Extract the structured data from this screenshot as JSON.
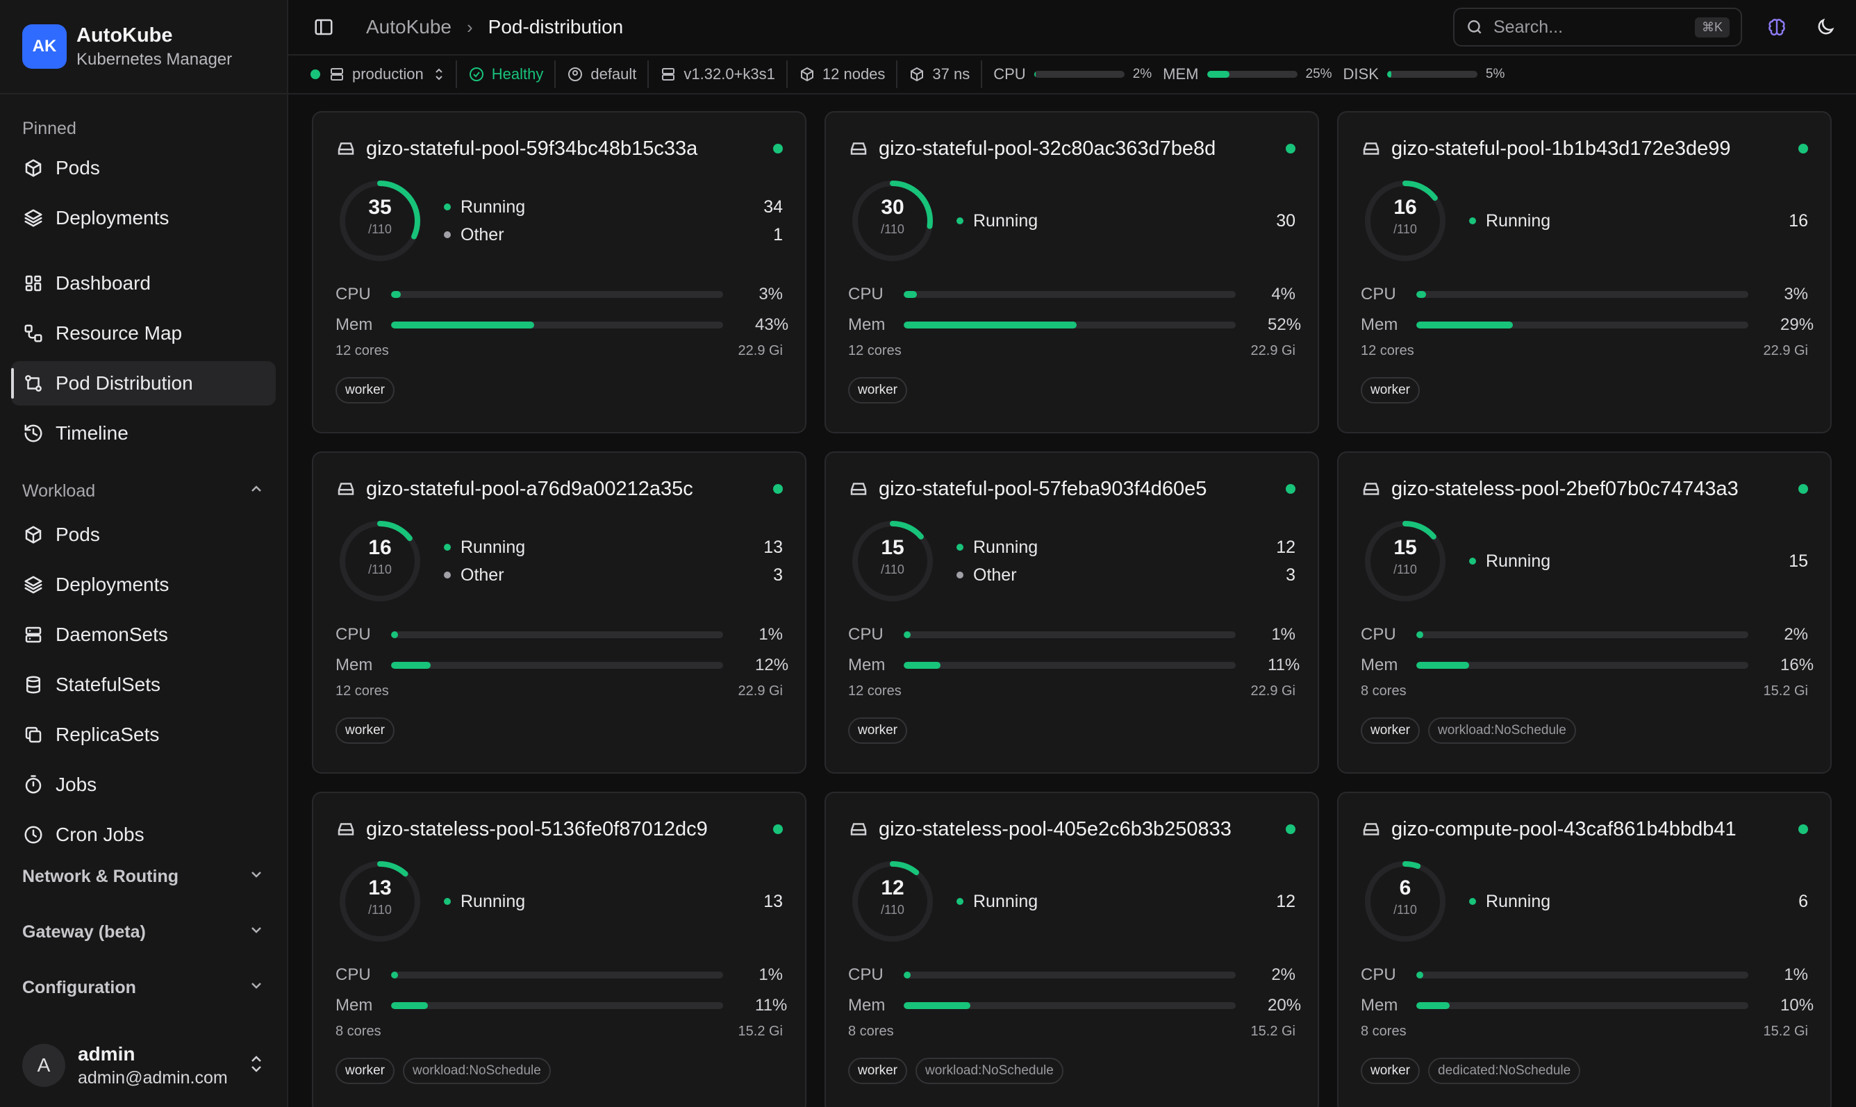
{
  "brand": {
    "logo": "AK",
    "name": "AutoKube",
    "subtitle": "Kubernetes Manager"
  },
  "sidebar": {
    "pinned_label": "Pinned",
    "pinned": [
      {
        "label": "Pods",
        "icon": "cube-icon"
      },
      {
        "label": "Deployments",
        "icon": "layers-icon"
      }
    ],
    "main": [
      {
        "label": "Dashboard",
        "icon": "dashboard-icon"
      },
      {
        "label": "Resource Map",
        "icon": "map-icon"
      },
      {
        "label": "Pod Distribution",
        "icon": "distribution-icon",
        "active": true
      },
      {
        "label": "Timeline",
        "icon": "history-icon"
      }
    ],
    "workload_label": "Workload",
    "workload": [
      {
        "label": "Pods",
        "icon": "cube-icon"
      },
      {
        "label": "Deployments",
        "icon": "layers-icon"
      },
      {
        "label": "DaemonSets",
        "icon": "server-icon"
      },
      {
        "label": "StatefulSets",
        "icon": "database-icon"
      },
      {
        "label": "ReplicaSets",
        "icon": "copy-icon"
      },
      {
        "label": "Jobs",
        "icon": "timer-icon"
      },
      {
        "label": "Cron Jobs",
        "icon": "clock-icon"
      }
    ],
    "sections": [
      "Network & Routing",
      "Gateway (beta)",
      "Configuration"
    ],
    "user": {
      "initial": "A",
      "name": "admin",
      "email": "admin@admin.com"
    }
  },
  "header": {
    "breadcrumb": [
      "AutoKube",
      "Pod-distribution"
    ],
    "search_placeholder": "Search...",
    "search_shortcut": "⌘K"
  },
  "statusbar": {
    "cluster": "production",
    "health": "Healthy",
    "namespace": "default",
    "version": "v1.32.0+k3s1",
    "nodes": "12 nodes",
    "namespaces": "37 ns",
    "cpu_label": "CPU",
    "cpu_pct": "2%",
    "cpu_val": 2,
    "mem_label": "MEM",
    "mem_pct": "25%",
    "mem_val": 25,
    "disk_label": "DISK",
    "disk_pct": "5%",
    "disk_val": 5
  },
  "colors": {
    "accent": "#18c37a",
    "brand": "#2f6bff",
    "other": "#a0a0a6"
  },
  "labels": {
    "running": "Running",
    "other": "Other",
    "cpu": "CPU",
    "mem": "Mem",
    "max": "/110"
  },
  "nodes": [
    {
      "name": "gizo-stateful-pool-59f34bc48b15c33a",
      "total": 35,
      "running": 34,
      "other": 1,
      "cpu_pct": "3%",
      "cpu": 3,
      "mem_pct": "43%",
      "mem": 43,
      "cores": "12 cores",
      "memory": "22.9 Gi",
      "tags": [
        "worker"
      ]
    },
    {
      "name": "gizo-stateful-pool-32c80ac363d7be8d",
      "total": 30,
      "running": 30,
      "other": 0,
      "cpu_pct": "4%",
      "cpu": 4,
      "mem_pct": "52%",
      "mem": 52,
      "cores": "12 cores",
      "memory": "22.9 Gi",
      "tags": [
        "worker"
      ]
    },
    {
      "name": "gizo-stateful-pool-1b1b43d172e3de99",
      "total": 16,
      "running": 16,
      "other": 0,
      "cpu_pct": "3%",
      "cpu": 3,
      "mem_pct": "29%",
      "mem": 29,
      "cores": "12 cores",
      "memory": "22.9 Gi",
      "tags": [
        "worker"
      ]
    },
    {
      "name": "gizo-stateful-pool-a76d9a00212a35c",
      "total": 16,
      "running": 13,
      "other": 3,
      "cpu_pct": "1%",
      "cpu": 1,
      "mem_pct": "12%",
      "mem": 12,
      "cores": "12 cores",
      "memory": "22.9 Gi",
      "tags": [
        "worker"
      ]
    },
    {
      "name": "gizo-stateful-pool-57feba903f4d60e5",
      "total": 15,
      "running": 12,
      "other": 3,
      "cpu_pct": "1%",
      "cpu": 1,
      "mem_pct": "11%",
      "mem": 11,
      "cores": "12 cores",
      "memory": "22.9 Gi",
      "tags": [
        "worker"
      ]
    },
    {
      "name": "gizo-stateless-pool-2bef07b0c74743a3",
      "total": 15,
      "running": 15,
      "other": 0,
      "cpu_pct": "2%",
      "cpu": 2,
      "mem_pct": "16%",
      "mem": 16,
      "cores": "8 cores",
      "memory": "15.2 Gi",
      "tags": [
        "worker",
        "workload:NoSchedule"
      ]
    },
    {
      "name": "gizo-stateless-pool-5136fe0f87012dc9",
      "total": 13,
      "running": 13,
      "other": 0,
      "cpu_pct": "1%",
      "cpu": 1,
      "mem_pct": "11%",
      "mem": 11,
      "cores": "8 cores",
      "memory": "15.2 Gi",
      "tags": [
        "worker",
        "workload:NoSchedule"
      ]
    },
    {
      "name": "gizo-stateless-pool-405e2c6b3b250833",
      "total": 12,
      "running": 12,
      "other": 0,
      "cpu_pct": "2%",
      "cpu": 2,
      "mem_pct": "20%",
      "mem": 20,
      "cores": "8 cores",
      "memory": "15.2 Gi",
      "tags": [
        "worker",
        "workload:NoSchedule"
      ]
    },
    {
      "name": "gizo-compute-pool-43caf861b4bbdb41",
      "total": 6,
      "running": 6,
      "other": 0,
      "cpu_pct": "1%",
      "cpu": 1,
      "mem_pct": "10%",
      "mem": 10,
      "cores": "8 cores",
      "memory": "15.2 Gi",
      "tags": [
        "worker",
        "dedicated:NoSchedule"
      ]
    }
  ]
}
